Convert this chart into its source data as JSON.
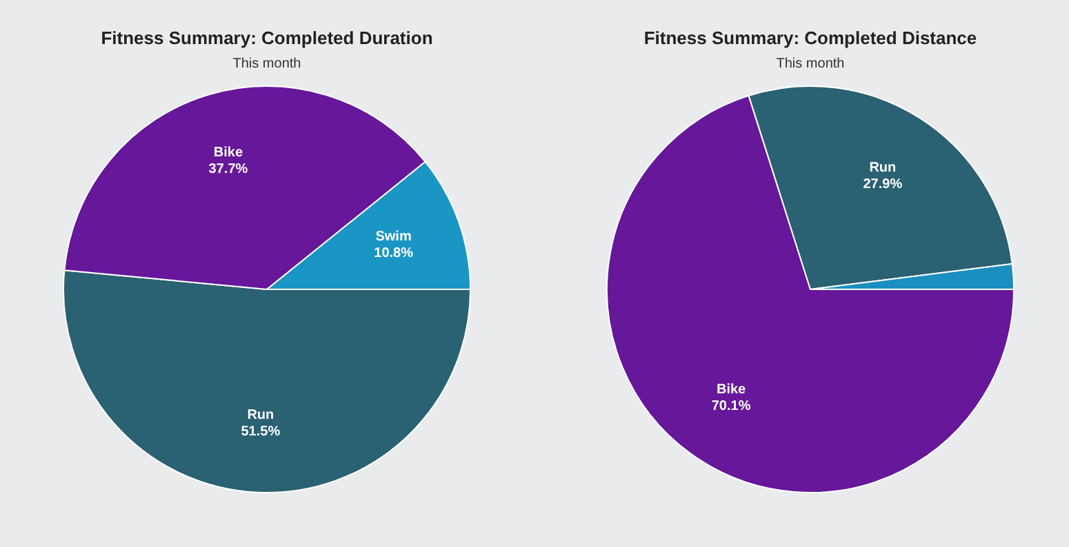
{
  "chart_data": [
    {
      "type": "pie",
      "title": "Fitness Summary: Completed Duration",
      "subtitle": "This month",
      "categories": [
        "Swim",
        "Bike",
        "Run"
      ],
      "values": [
        10.8,
        37.7,
        51.5
      ],
      "colors": [
        "#1a96c4",
        "#66179a",
        "#2a6173"
      ],
      "value_labels": [
        "10.8%",
        "37.7%",
        "51.5%"
      ],
      "legend": false
    },
    {
      "type": "pie",
      "title": "Fitness Summary: Completed Distance",
      "subtitle": "This month",
      "categories": [
        null,
        "Run",
        "Bike"
      ],
      "values": [
        2.0,
        27.9,
        70.1
      ],
      "colors": [
        "#1a8fc0",
        "#2a6173",
        "#66179a"
      ],
      "value_labels": [
        null,
        "27.9%",
        "70.1%"
      ],
      "legend": false
    }
  ]
}
